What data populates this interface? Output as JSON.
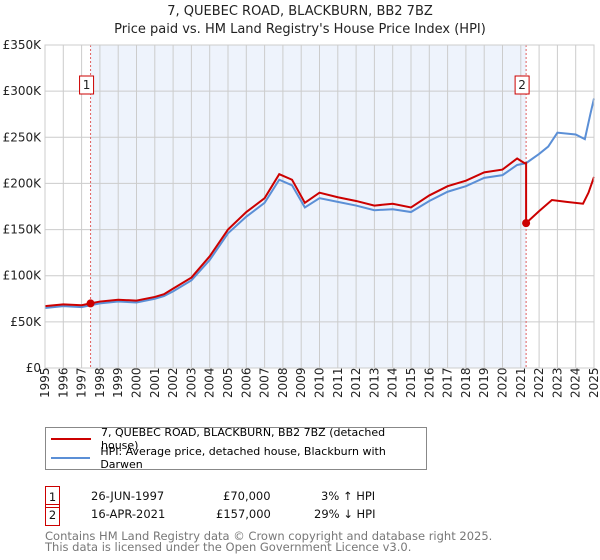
{
  "title": "7, QUEBEC ROAD, BLACKBURN, BB2 7BZ",
  "subtitle": "Price paid vs. HM Land Registry's House Price Index (HPI)",
  "colors": {
    "property": "#cc0000",
    "hpi": "#5b8fd6",
    "shade": "#eef3fc"
  },
  "chart_data": {
    "type": "line",
    "xlim": [
      1995,
      2025
    ],
    "ylim": [
      0,
      350000
    ],
    "yticks": [
      0,
      50000,
      100000,
      150000,
      200000,
      250000,
      300000,
      350000
    ],
    "ytick_labels": [
      "£0",
      "£50K",
      "£100K",
      "£150K",
      "£200K",
      "£250K",
      "£300K",
      "£350K"
    ],
    "xticks": [
      1995,
      1996,
      1997,
      1998,
      1999,
      2000,
      2001,
      2002,
      2003,
      2004,
      2005,
      2006,
      2007,
      2008,
      2009,
      2010,
      2011,
      2012,
      2013,
      2014,
      2015,
      2016,
      2017,
      2018,
      2019,
      2020,
      2021,
      2022,
      2023,
      2024,
      2025
    ],
    "series": [
      {
        "name": "7, QUEBEC ROAD, BLACKBURN, BB2 7BZ (detached house)",
        "color": "#cc0000",
        "x": [
          1995,
          1996,
          1997,
          1997.49,
          1998,
          1999,
          2000,
          2001,
          2001.5,
          2002,
          2003,
          2004,
          2005,
          2006,
          2007,
          2007.8,
          2008.5,
          2009.2,
          2010,
          2011,
          2012,
          2013,
          2014,
          2015,
          2016,
          2017,
          2018,
          2019,
          2020,
          2020.8,
          2021.2,
          2021.29,
          2021.29,
          2022,
          2022.7,
          2023.5,
          2024.4,
          2024.7,
          2025
        ],
        "y": [
          67000,
          69000,
          68000,
          70000,
          72000,
          74000,
          73000,
          77000,
          80000,
          86000,
          98000,
          121000,
          150000,
          169000,
          184000,
          210000,
          204000,
          179000,
          190000,
          185000,
          181000,
          176000,
          178000,
          174000,
          187000,
          197000,
          203000,
          212000,
          215000,
          227000,
          222000,
          222000,
          157000,
          170000,
          182000,
          180000,
          178000,
          190000,
          207000
        ]
      },
      {
        "name": "HPI: Average price, detached house, Blackburn with Darwen",
        "color": "#5b8fd6",
        "x": [
          1995,
          1996,
          1997,
          1997.49,
          1998,
          1999,
          2000,
          2001,
          2001.5,
          2002,
          2003,
          2004,
          2005,
          2006,
          2007,
          2007.8,
          2008.5,
          2009.2,
          2010,
          2011,
          2012,
          2013,
          2014,
          2015,
          2016,
          2017,
          2018,
          2019,
          2020,
          2020.8,
          2021.29,
          2022,
          2022.5,
          2023,
          2024,
          2024.5,
          2024.8,
          2025
        ],
        "y": [
          65000,
          67000,
          66000,
          68000,
          70000,
          72000,
          71000,
          75000,
          78000,
          83000,
          95000,
          117000,
          146000,
          164000,
          179000,
          204000,
          198000,
          174000,
          184000,
          180000,
          176000,
          171000,
          172000,
          169000,
          181000,
          191000,
          197000,
          206000,
          209000,
          220000,
          222000,
          232000,
          240000,
          255000,
          253000,
          248000,
          275000,
          292000
        ]
      }
    ],
    "sales": [
      {
        "id": "1",
        "x": 1997.49,
        "y": 70000
      },
      {
        "id": "2",
        "x": 2021.29,
        "y": 157000
      }
    ]
  },
  "legend": [
    {
      "label": "7, QUEBEC ROAD, BLACKBURN, BB2 7BZ (detached house)"
    },
    {
      "label": "HPI: Average price, detached house, Blackburn with Darwen"
    }
  ],
  "transactions": [
    {
      "id": "1",
      "date": "26-JUN-1997",
      "price": "£70,000",
      "delta": "3% ↑ HPI"
    },
    {
      "id": "2",
      "date": "16-APR-2021",
      "price": "£157,000",
      "delta": "29% ↓ HPI"
    }
  ],
  "footer": [
    "Contains HM Land Registry data © Crown copyright and database right 2025.",
    "This data is licensed under the Open Government Licence v3.0."
  ]
}
